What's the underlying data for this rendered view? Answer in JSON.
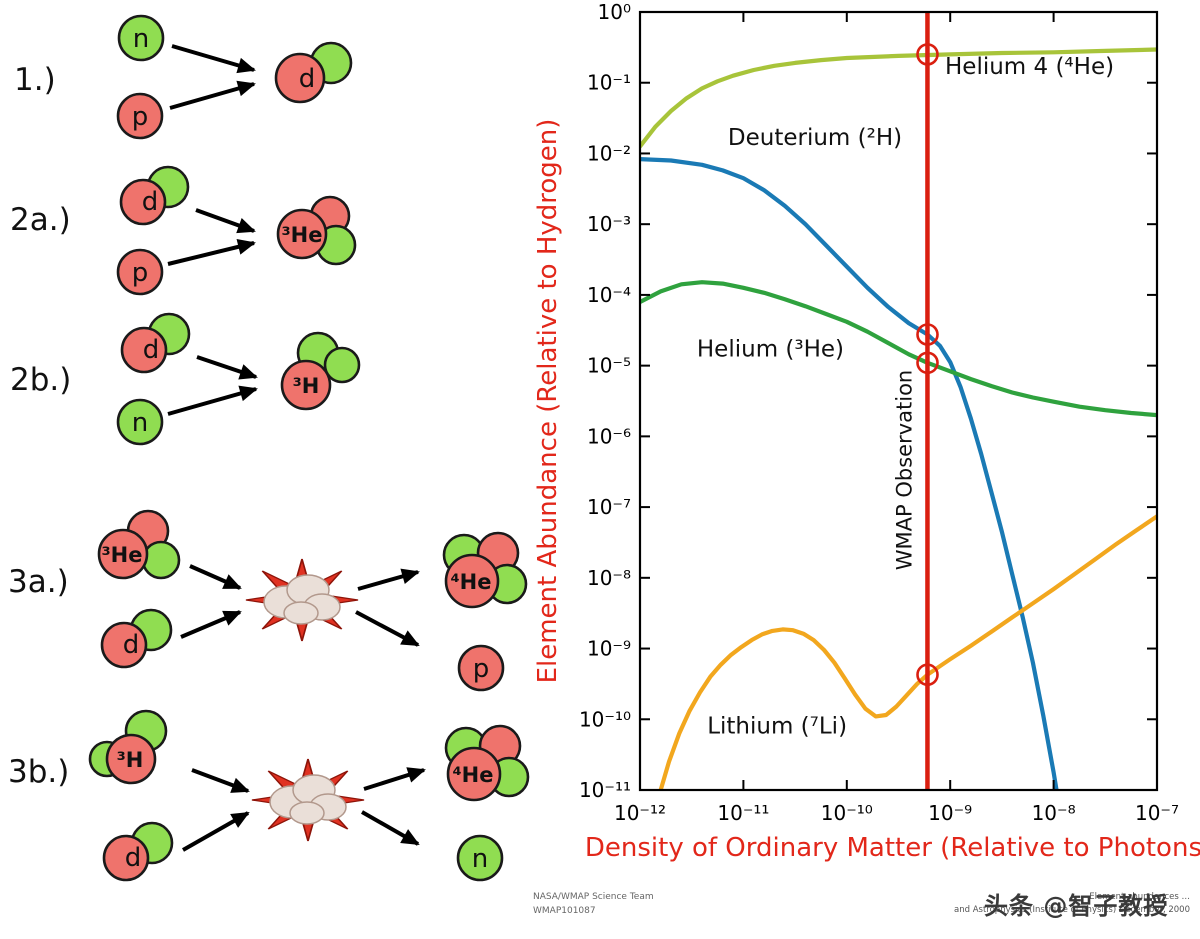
{
  "watermark": {
    "text": "头条 @智子教授"
  },
  "credits": {
    "team": "NASA/WMAP Science Team",
    "id": "WMAP101087",
    "source_line1": "Element abundances …",
    "source_line2": "and Astrophysics (Institute of Physics) December, 2000"
  },
  "diagram": {
    "particle_colors": {
      "proton": "#ef736c",
      "neutron": "#90dd51"
    },
    "reactions": [
      {
        "step": "1.)",
        "in1": "n",
        "in2": "p",
        "out1": "d"
      },
      {
        "step": "2a.)",
        "in1": "d",
        "in2": "p",
        "out1": "³He"
      },
      {
        "step": "2b.)",
        "in1": "d",
        "in2": "n",
        "out1": "³H"
      },
      {
        "step": "3a.)",
        "in1": "³He",
        "in2": "d",
        "out1": "⁴He",
        "out2": "p"
      },
      {
        "step": "3b.)",
        "in1": "³H",
        "in2": "d",
        "out1": "⁴He",
        "out2": "n"
      }
    ]
  },
  "chart_data": {
    "type": "line",
    "title": "",
    "xlabel": "Density of Ordinary Matter (Relative to Photons)",
    "ylabel": "Element Abundance (Relative to Hydrogen)",
    "axis_title_color": "#e2271a",
    "grid": false,
    "legend": "inline-labels",
    "xlim_log10": [
      -12,
      -7
    ],
    "ylim_log10": [
      -11,
      0
    ],
    "x_tick_labels": [
      "10⁻¹²",
      "10⁻¹¹",
      "10⁻¹⁰",
      "10⁻⁹",
      "10⁻⁸",
      "10⁻⁷"
    ],
    "y_tick_labels": [
      "10⁰",
      "10⁻¹",
      "10⁻²",
      "10⁻³",
      "10⁻⁴",
      "10⁻⁵",
      "10⁻⁶",
      "10⁻⁷",
      "10⁻⁸",
      "10⁻⁹",
      "10⁻¹⁰",
      "10⁻¹¹"
    ],
    "wmap_line": {
      "label": "WMAP Observation",
      "log10_x": -9.22,
      "color": "#da1f10"
    },
    "markers": [
      {
        "series": "helium4",
        "log10": [
          -9.22,
          -0.6
        ]
      },
      {
        "series": "deuterium",
        "log10": [
          -9.22,
          -4.56
        ]
      },
      {
        "series": "helium3",
        "log10": [
          -9.22,
          -4.96
        ]
      },
      {
        "series": "lithium",
        "log10": [
          -9.22,
          -9.37
        ]
      }
    ],
    "series": [
      {
        "id": "helium4",
        "label": "Helium 4 (⁴He)",
        "color": "#a8c43a",
        "label_anchor": [
          -9.05,
          -0.88
        ],
        "points_log10": [
          [
            -12,
            -1.9
          ],
          [
            -11.85,
            -1.62
          ],
          [
            -11.7,
            -1.4
          ],
          [
            -11.55,
            -1.22
          ],
          [
            -11.4,
            -1.08
          ],
          [
            -11.25,
            -0.98
          ],
          [
            -11.1,
            -0.9
          ],
          [
            -10.9,
            -0.82
          ],
          [
            -10.7,
            -0.76
          ],
          [
            -10.5,
            -0.72
          ],
          [
            -10.25,
            -0.68
          ],
          [
            -10,
            -0.65
          ],
          [
            -9.5,
            -0.62
          ],
          [
            -9,
            -0.6
          ],
          [
            -8.5,
            -0.58
          ],
          [
            -8,
            -0.57
          ],
          [
            -7.5,
            -0.55
          ],
          [
            -7,
            -0.53
          ]
        ]
      },
      {
        "id": "deuterium",
        "label": "Deuterium (²H)",
        "color": "#1a7ab5",
        "label_anchor": [
          -11.15,
          -1.88
        ],
        "points_log10": [
          [
            -12,
            -2.08
          ],
          [
            -11.7,
            -2.1
          ],
          [
            -11.4,
            -2.16
          ],
          [
            -11.2,
            -2.24
          ],
          [
            -11,
            -2.35
          ],
          [
            -10.8,
            -2.52
          ],
          [
            -10.6,
            -2.74
          ],
          [
            -10.4,
            -3.0
          ],
          [
            -10.2,
            -3.3
          ],
          [
            -10,
            -3.6
          ],
          [
            -9.8,
            -3.9
          ],
          [
            -9.6,
            -4.17
          ],
          [
            -9.4,
            -4.4
          ],
          [
            -9.22,
            -4.56
          ],
          [
            -9.1,
            -4.72
          ],
          [
            -9,
            -4.95
          ],
          [
            -8.9,
            -5.3
          ],
          [
            -8.8,
            -5.75
          ],
          [
            -8.7,
            -6.25
          ],
          [
            -8.6,
            -6.8
          ],
          [
            -8.5,
            -7.35
          ],
          [
            -8.4,
            -7.95
          ],
          [
            -8.3,
            -8.55
          ],
          [
            -8.2,
            -9.2
          ],
          [
            -8.1,
            -9.95
          ],
          [
            -8,
            -10.75
          ],
          [
            -7.96,
            -11.1
          ]
        ]
      },
      {
        "id": "helium3",
        "label": "Helium (³He)",
        "color": "#2fa23e",
        "label_anchor": [
          -11.45,
          -4.87
        ],
        "points_log10": [
          [
            -12,
            -4.1
          ],
          [
            -11.8,
            -3.95
          ],
          [
            -11.6,
            -3.85
          ],
          [
            -11.4,
            -3.82
          ],
          [
            -11.2,
            -3.84
          ],
          [
            -11,
            -3.9
          ],
          [
            -10.8,
            -3.97
          ],
          [
            -10.6,
            -4.06
          ],
          [
            -10.4,
            -4.16
          ],
          [
            -10.2,
            -4.27
          ],
          [
            -10,
            -4.38
          ],
          [
            -9.8,
            -4.52
          ],
          [
            -9.6,
            -4.68
          ],
          [
            -9.4,
            -4.84
          ],
          [
            -9.22,
            -4.96
          ],
          [
            -9,
            -5.08
          ],
          [
            -8.8,
            -5.19
          ],
          [
            -8.6,
            -5.29
          ],
          [
            -8.4,
            -5.38
          ],
          [
            -8.2,
            -5.45
          ],
          [
            -8,
            -5.51
          ],
          [
            -7.75,
            -5.58
          ],
          [
            -7.5,
            -5.63
          ],
          [
            -7.25,
            -5.67
          ],
          [
            -7,
            -5.7
          ]
        ]
      },
      {
        "id": "lithium",
        "label": "Lithium (⁷Li)",
        "color": "#f2a71e",
        "label_anchor": [
          -11.35,
          -10.2
        ],
        "points_log10": [
          [
            -11.82,
            -11.1
          ],
          [
            -11.72,
            -10.6
          ],
          [
            -11.62,
            -10.2
          ],
          [
            -11.52,
            -9.88
          ],
          [
            -11.42,
            -9.62
          ],
          [
            -11.32,
            -9.4
          ],
          [
            -11.22,
            -9.23
          ],
          [
            -11.12,
            -9.09
          ],
          [
            -11.02,
            -8.98
          ],
          [
            -10.92,
            -8.88
          ],
          [
            -10.82,
            -8.8
          ],
          [
            -10.72,
            -8.75
          ],
          [
            -10.62,
            -8.73
          ],
          [
            -10.52,
            -8.74
          ],
          [
            -10.42,
            -8.79
          ],
          [
            -10.32,
            -8.88
          ],
          [
            -10.22,
            -9.02
          ],
          [
            -10.12,
            -9.2
          ],
          [
            -10.02,
            -9.42
          ],
          [
            -9.92,
            -9.65
          ],
          [
            -9.82,
            -9.85
          ],
          [
            -9.72,
            -9.96
          ],
          [
            -9.62,
            -9.94
          ],
          [
            -9.52,
            -9.82
          ],
          [
            -9.42,
            -9.66
          ],
          [
            -9.32,
            -9.5
          ],
          [
            -9.22,
            -9.37
          ],
          [
            -9.1,
            -9.25
          ],
          [
            -9,
            -9.15
          ],
          [
            -8.8,
            -8.96
          ],
          [
            -8.6,
            -8.76
          ],
          [
            -8.4,
            -8.56
          ],
          [
            -8.2,
            -8.36
          ],
          [
            -8,
            -8.16
          ],
          [
            -7.8,
            -7.95
          ],
          [
            -7.6,
            -7.74
          ],
          [
            -7.4,
            -7.53
          ],
          [
            -7.2,
            -7.33
          ],
          [
            -7,
            -7.13
          ]
        ]
      }
    ]
  }
}
